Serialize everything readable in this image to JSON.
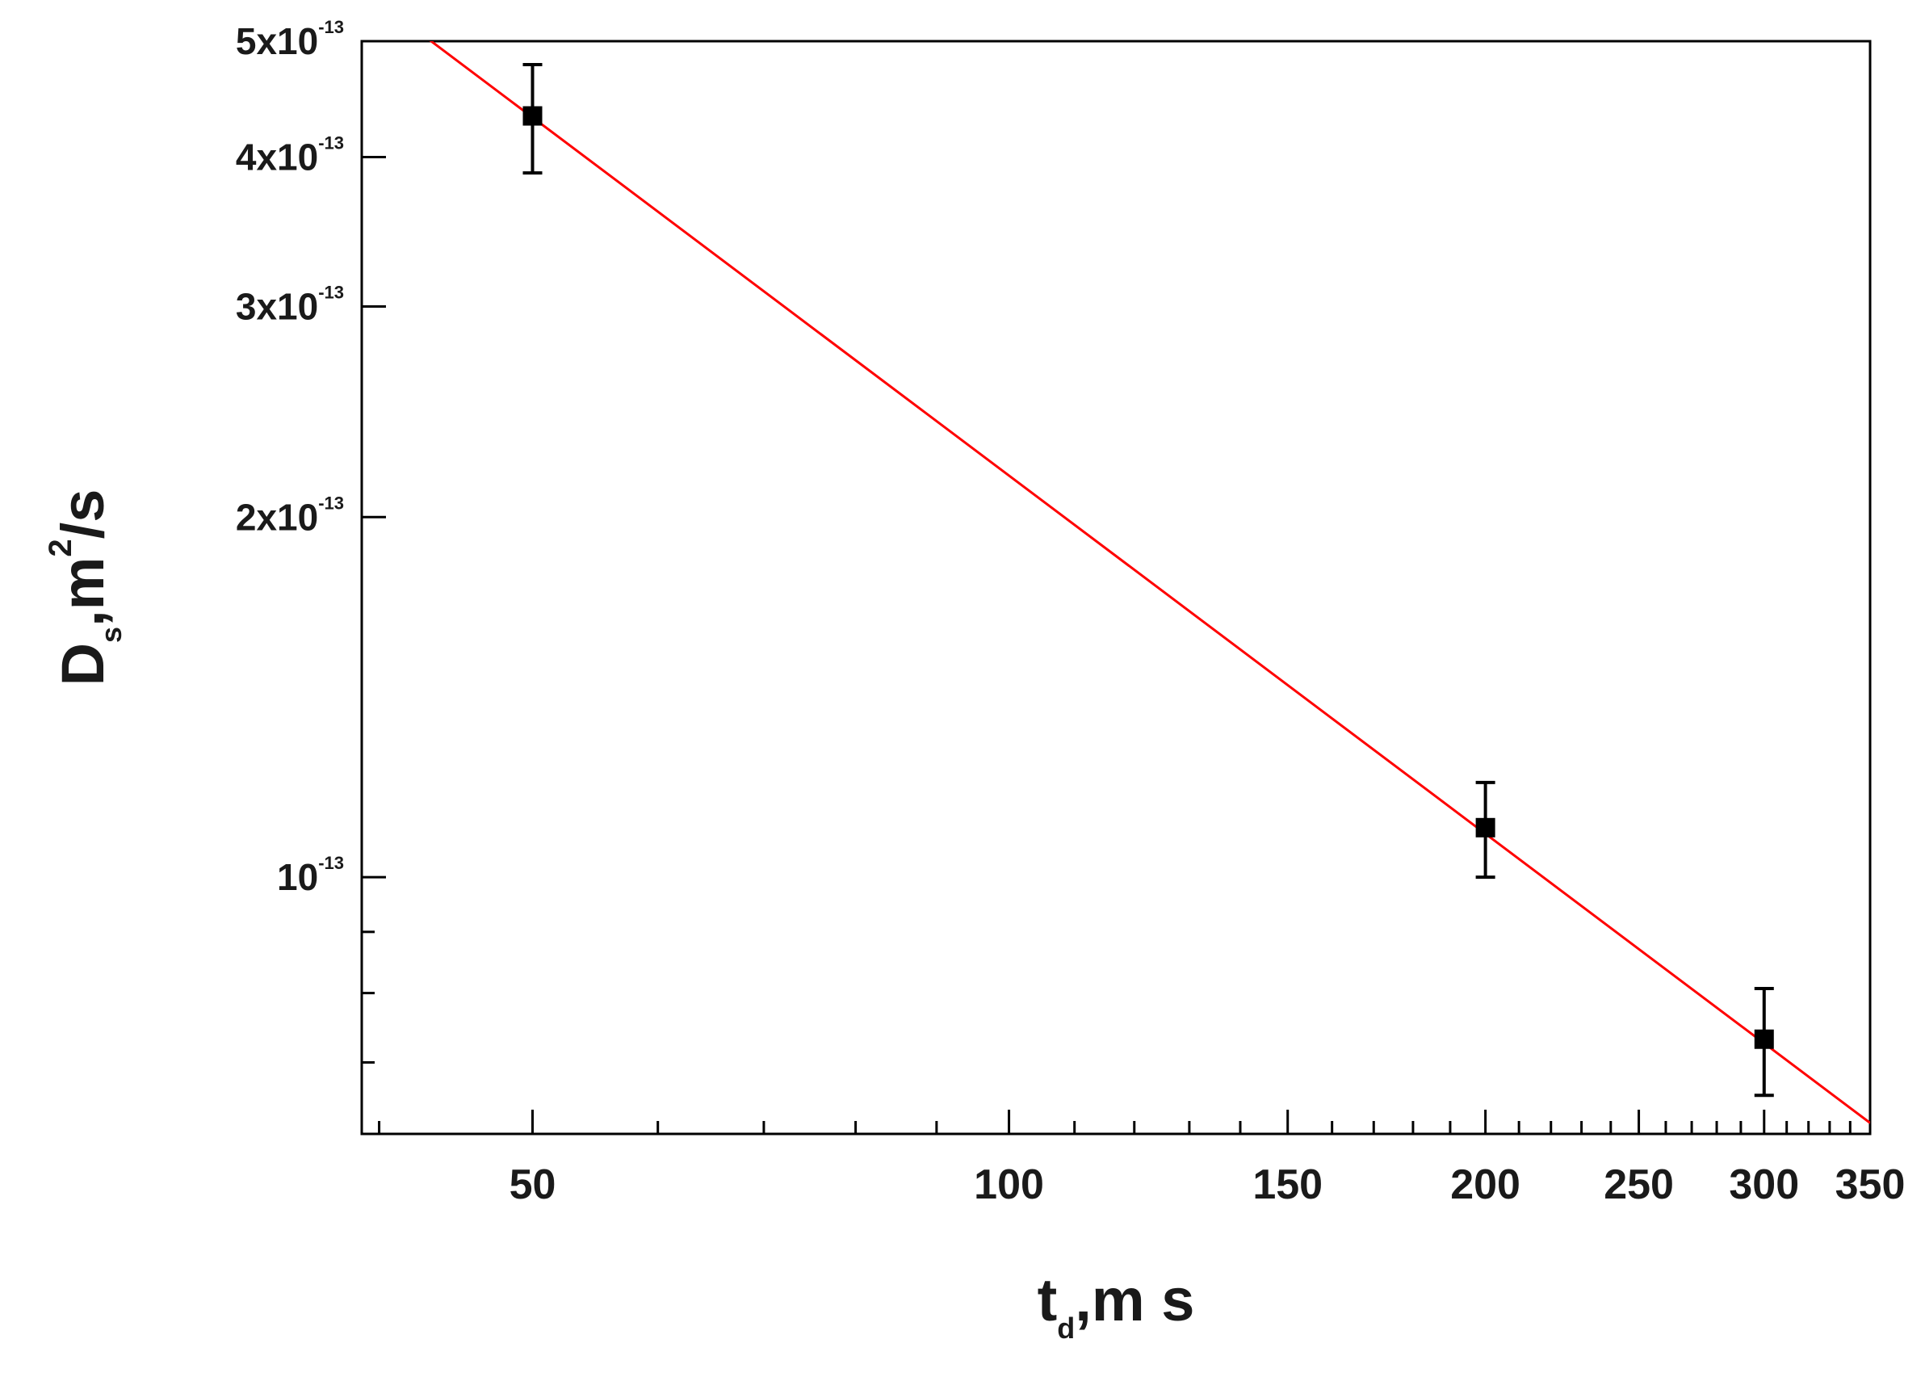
{
  "chart_data": {
    "type": "scatter",
    "xlabel": [
      {
        "text": "t"
      },
      {
        "text": "d",
        "shift": "sub"
      },
      {
        "text": ",m s"
      }
    ],
    "ylabel": [
      {
        "text": "D"
      },
      {
        "text": "s",
        "shift": "sub"
      },
      {
        "text": ",m"
      },
      {
        "text": "2",
        "shift": "super"
      },
      {
        "text": "/s"
      }
    ],
    "xscale": "log",
    "yscale": "log",
    "xlim": [
      39,
      350
    ],
    "ylim": [
      6.1e-14,
      5e-13
    ],
    "xticks": [
      50,
      100,
      150,
      200,
      250,
      300,
      350
    ],
    "xminorticks": [
      40,
      60,
      70,
      80,
      90,
      110,
      120,
      130,
      140,
      160,
      170,
      180,
      190,
      210,
      220,
      230,
      240,
      260,
      270,
      280,
      290,
      310,
      320,
      330,
      340
    ],
    "yticks": [
      {
        "value": 1e-13,
        "label": "10",
        "exponent": "-13"
      },
      {
        "value": 2e-13,
        "label": "2x10",
        "exponent": "-13"
      },
      {
        "value": 3e-13,
        "label": "3x10",
        "exponent": "-13"
      },
      {
        "value": 4e-13,
        "label": "4x10",
        "exponent": "-13"
      },
      {
        "value": 5e-13,
        "label": "5x10",
        "exponent": "-13"
      }
    ],
    "yminorticks": [
      7e-14,
      8e-14,
      9e-14
    ],
    "series": [
      {
        "style": "marker",
        "color": "#000000",
        "x": [
          50,
          200,
          300
        ],
        "values": [
          4.33e-13,
          1.1e-13,
          7.32e-14
        ],
        "errors": [
          4.5e-14,
          1e-14,
          7.5e-15
        ]
      },
      {
        "style": "line",
        "color": "#ff0000",
        "x": [
          42.8,
          350
        ],
        "values": [
          5.04e-13,
          6.23e-14
        ]
      }
    ]
  }
}
